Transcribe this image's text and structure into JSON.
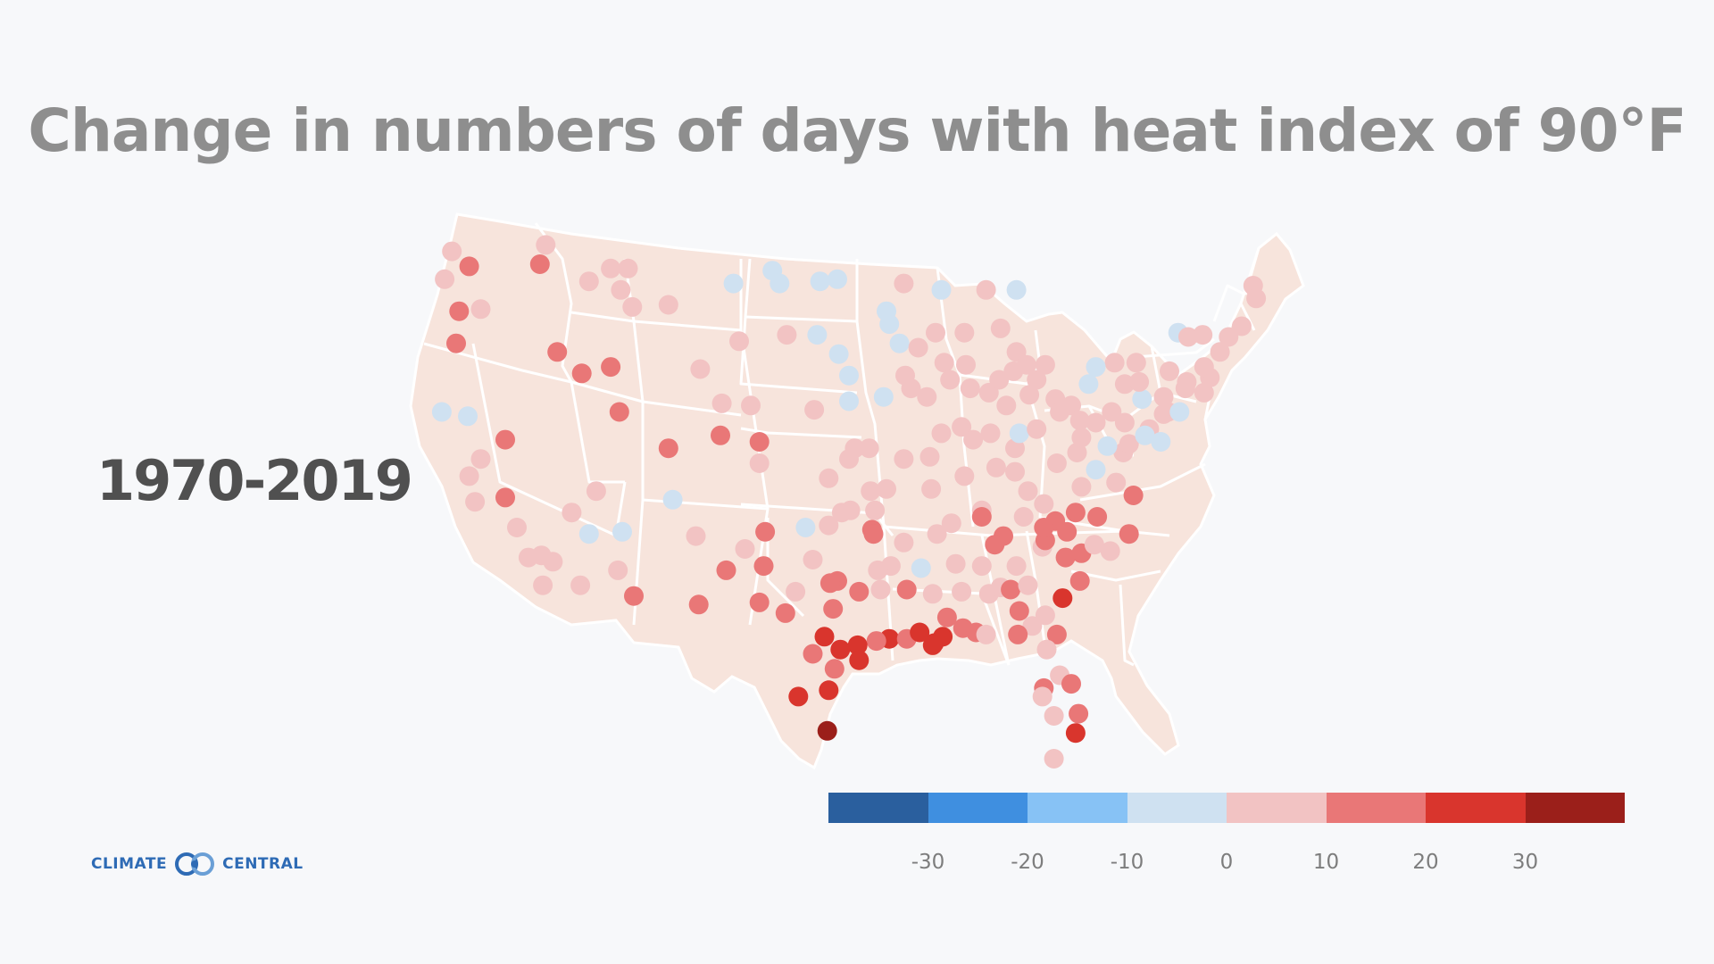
{
  "title": "Change in numbers of days with heat index of 90°F",
  "period": "1970-2019",
  "logo": {
    "left_text": "CLIMATE",
    "right_text": "CENTRAL",
    "icon": "climate-central-rings-icon"
  },
  "colors": {
    "background": "#f7f8fa",
    "land": "#f7e4dc",
    "borders": "#ffffff",
    "title": "#8e8e8e",
    "period": "#505050"
  },
  "legend": {
    "bins": [
      {
        "min": -40,
        "max": -30,
        "color": "#2a5f9e"
      },
      {
        "min": -30,
        "max": -20,
        "color": "#3f8fe0"
      },
      {
        "min": -20,
        "max": -10,
        "color": "#87c2f5"
      },
      {
        "min": -10,
        "max": 0,
        "color": "#cfe1f1"
      },
      {
        "min": 0,
        "max": 10,
        "color": "#f2c3c3"
      },
      {
        "min": 10,
        "max": 20,
        "color": "#e97777"
      },
      {
        "min": 20,
        "max": 30,
        "color": "#d9352d"
      },
      {
        "min": 30,
        "max": 40,
        "color": "#9b1f1a"
      }
    ],
    "ticks": [
      "-30",
      "-20",
      "-10",
      "0",
      "10",
      "20",
      "30"
    ]
  },
  "stations_note": "Station values are approximate change in days (1970-2019), placed by lon/lat",
  "stations": [
    {
      "lon": -123.5,
      "lat": 48.3,
      "v": 5
    },
    {
      "lon": -122.3,
      "lat": 47.6,
      "v": 15
    },
    {
      "lon": -124,
      "lat": 47.0,
      "v": 5
    },
    {
      "lon": -123.0,
      "lat": 45.5,
      "v": 15
    },
    {
      "lon": -121.5,
      "lat": 45.6,
      "v": 5
    },
    {
      "lon": -123.2,
      "lat": 44.0,
      "v": 15
    },
    {
      "lon": -117.4,
      "lat": 47.7,
      "v": 15
    },
    {
      "lon": -117.0,
      "lat": 48.6,
      "v": 5
    },
    {
      "lon": -116.2,
      "lat": 43.6,
      "v": 15
    },
    {
      "lon": -114.0,
      "lat": 46.9,
      "v": 5
    },
    {
      "lon": -112.5,
      "lat": 47.5,
      "v": 5
    },
    {
      "lon": -111.3,
      "lat": 47.5,
      "v": 5
    },
    {
      "lon": -111.8,
      "lat": 46.5,
      "v": 5
    },
    {
      "lon": -111.0,
      "lat": 45.7,
      "v": 5
    },
    {
      "lon": -108.5,
      "lat": 45.8,
      "v": 5
    },
    {
      "lon": -104.0,
      "lat": 46.8,
      "v": -5
    },
    {
      "lon": -101.3,
      "lat": 47.4,
      "v": -5
    },
    {
      "lon": -100.8,
      "lat": 46.8,
      "v": -5
    },
    {
      "lon": -98.0,
      "lat": 46.9,
      "v": -5
    },
    {
      "lon": -96.8,
      "lat": 47.0,
      "v": -5
    },
    {
      "lon": -114.5,
      "lat": 42.6,
      "v": 15
    },
    {
      "lon": -112.5,
      "lat": 42.9,
      "v": 15
    },
    {
      "lon": -111.9,
      "lat": 40.8,
      "v": 15
    },
    {
      "lon": -106.3,
      "lat": 42.8,
      "v": 5
    },
    {
      "lon": -104.8,
      "lat": 41.2,
      "v": 5
    },
    {
      "lon": -103.6,
      "lat": 44.1,
      "v": 5
    },
    {
      "lon": -100.3,
      "lat": 44.4,
      "v": 5
    },
    {
      "lon": -98.2,
      "lat": 44.4,
      "v": -5
    },
    {
      "lon": -96.7,
      "lat": 43.5,
      "v": -5
    },
    {
      "lon": -96.0,
      "lat": 42.5,
      "v": -5
    },
    {
      "lon": -102.8,
      "lat": 41.1,
      "v": 5
    },
    {
      "lon": -98.4,
      "lat": 40.9,
      "v": 5
    },
    {
      "lon": -96.0,
      "lat": 41.3,
      "v": -5
    },
    {
      "lon": -104.9,
      "lat": 39.7,
      "v": 15
    },
    {
      "lon": -102.2,
      "lat": 39.4,
      "v": 15
    },
    {
      "lon": -108.5,
      "lat": 39.1,
      "v": 15
    },
    {
      "lon": -102.2,
      "lat": 38.4,
      "v": 5
    },
    {
      "lon": -97.4,
      "lat": 37.7,
      "v": 5
    },
    {
      "lon": -95.6,
      "lat": 39.1,
      "v": 5
    },
    {
      "lon": -96.0,
      "lat": 38.6,
      "v": 5
    },
    {
      "lon": -99.0,
      "lat": 35.4,
      "v": -5
    },
    {
      "lon": -97.4,
      "lat": 35.5,
      "v": 5
    },
    {
      "lon": -96.5,
      "lat": 36.1,
      "v": 5
    },
    {
      "lon": -95.9,
      "lat": 36.2,
      "v": 5
    },
    {
      "lon": -94.6,
      "lat": 39.1,
      "v": 5
    },
    {
      "lon": -94.5,
      "lat": 37.1,
      "v": 5
    },
    {
      "lon": -92.2,
      "lat": 38.6,
      "v": 5
    },
    {
      "lon": -93.4,
      "lat": 37.2,
      "v": 5
    },
    {
      "lon": -90.4,
      "lat": 38.7,
      "v": 5
    },
    {
      "lon": -91.7,
      "lat": 41.9,
      "v": 5
    },
    {
      "lon": -93.6,
      "lat": 41.5,
      "v": -5
    },
    {
      "lon": -90.6,
      "lat": 41.5,
      "v": 5
    },
    {
      "lon": -92.1,
      "lat": 42.5,
      "v": 5
    },
    {
      "lon": -93.2,
      "lat": 44.9,
      "v": -5
    },
    {
      "lon": -92.5,
      "lat": 44.0,
      "v": -5
    },
    {
      "lon": -92.2,
      "lat": 46.8,
      "v": 5
    },
    {
      "lon": -93.4,
      "lat": 45.5,
      "v": -5
    },
    {
      "lon": -91.2,
      "lat": 43.8,
      "v": 5
    },
    {
      "lon": -90.0,
      "lat": 44.5,
      "v": 5
    },
    {
      "lon": -89.4,
      "lat": 43.1,
      "v": 5
    },
    {
      "lon": -87.9,
      "lat": 43.0,
      "v": 5
    },
    {
      "lon": -88.0,
      "lat": 44.5,
      "v": 5
    },
    {
      "lon": -89.6,
      "lat": 46.5,
      "v": -5
    },
    {
      "lon": -87.6,
      "lat": 41.9,
      "v": 5
    },
    {
      "lon": -89.6,
      "lat": 39.8,
      "v": 5
    },
    {
      "lon": -88.2,
      "lat": 40.1,
      "v": 5
    },
    {
      "lon": -89.0,
      "lat": 42.3,
      "v": 5
    },
    {
      "lon": -87.4,
      "lat": 39.5,
      "v": 5
    },
    {
      "lon": -86.2,
      "lat": 39.8,
      "v": 5
    },
    {
      "lon": -85.1,
      "lat": 41.1,
      "v": 5
    },
    {
      "lon": -86.3,
      "lat": 41.7,
      "v": 5
    },
    {
      "lon": -85.6,
      "lat": 42.3,
      "v": 5
    },
    {
      "lon": -84.6,
      "lat": 42.7,
      "v": 5
    },
    {
      "lon": -83.0,
      "lat": 42.3,
      "v": 5
    },
    {
      "lon": -84.4,
      "lat": 43.6,
      "v": 5
    },
    {
      "lon": -85.5,
      "lat": 44.7,
      "v": 5
    },
    {
      "lon": -84.4,
      "lat": 46.5,
      "v": -5
    },
    {
      "lon": -86.5,
      "lat": 46.5,
      "v": 5
    },
    {
      "lon": -83.7,
      "lat": 43.0,
      "v": 5
    },
    {
      "lon": -82.4,
      "lat": 43.0,
      "v": 5
    },
    {
      "lon": -84.5,
      "lat": 39.1,
      "v": 5
    },
    {
      "lon": -84.2,
      "lat": 39.8,
      "v": -5
    },
    {
      "lon": -83.0,
      "lat": 40.0,
      "v": 5
    },
    {
      "lon": -81.7,
      "lat": 41.4,
      "v": 5
    },
    {
      "lon": -83.5,
      "lat": 41.6,
      "v": 5
    },
    {
      "lon": -81.4,
      "lat": 40.8,
      "v": 5
    },
    {
      "lon": -80.6,
      "lat": 41.1,
      "v": 5
    },
    {
      "lon": -80.0,
      "lat": 40.4,
      "v": 5
    },
    {
      "lon": -79.9,
      "lat": 39.6,
      "v": 5
    },
    {
      "lon": -81.6,
      "lat": 38.4,
      "v": 5
    },
    {
      "lon": -80.2,
      "lat": 38.9,
      "v": 5
    },
    {
      "lon": -78.9,
      "lat": 40.3,
      "v": 5
    },
    {
      "lon": -77.8,
      "lat": 40.8,
      "v": 5
    },
    {
      "lon": -76.9,
      "lat": 40.3,
      "v": 5
    },
    {
      "lon": -75.2,
      "lat": 40.0,
      "v": 5
    },
    {
      "lon": -75.7,
      "lat": 41.4,
      "v": -5
    },
    {
      "lon": -77.0,
      "lat": 38.9,
      "v": 5
    },
    {
      "lon": -76.6,
      "lat": 39.3,
      "v": 5
    },
    {
      "lon": -78.1,
      "lat": 39.2,
      "v": -5
    },
    {
      "lon": -77.5,
      "lat": 37.5,
      "v": 5
    },
    {
      "lon": -76.3,
      "lat": 36.9,
      "v": 15
    },
    {
      "lon": -79.9,
      "lat": 37.3,
      "v": 5
    },
    {
      "lon": -78.9,
      "lat": 38.1,
      "v": -5
    },
    {
      "lon": -75.5,
      "lat": 39.7,
      "v": -5
    },
    {
      "lon": -74.4,
      "lat": 39.4,
      "v": -5
    },
    {
      "lon": -74.2,
      "lat": 40.7,
      "v": 5
    },
    {
      "lon": -73.9,
      "lat": 40.8,
      "v": 5
    },
    {
      "lon": -73.1,
      "lat": 40.8,
      "v": -5
    },
    {
      "lon": -73.8,
      "lat": 42.7,
      "v": 5
    },
    {
      "lon": -76.1,
      "lat": 43.1,
      "v": 5
    },
    {
      "lon": -77.6,
      "lat": 43.1,
      "v": 5
    },
    {
      "lon": -78.9,
      "lat": 42.9,
      "v": -5
    },
    {
      "lon": -79.4,
      "lat": 42.1,
      "v": -5
    },
    {
      "lon": -76.9,
      "lat": 42.1,
      "v": 5
    },
    {
      "lon": -75.9,
      "lat": 42.2,
      "v": 5
    },
    {
      "lon": -74.2,
      "lat": 41.5,
      "v": 5
    },
    {
      "lon": -73.2,
      "lat": 44.5,
      "v": -5
    },
    {
      "lon": -72.7,
      "lat": 41.9,
      "v": 5
    },
    {
      "lon": -71.4,
      "lat": 41.7,
      "v": 5
    },
    {
      "lon": -71.0,
      "lat": 42.4,
      "v": 5
    },
    {
      "lon": -72.6,
      "lat": 42.2,
      "v": 5
    },
    {
      "lon": -71.4,
      "lat": 42.9,
      "v": 5
    },
    {
      "lon": -70.3,
      "lat": 43.6,
      "v": 5
    },
    {
      "lon": -71.5,
      "lat": 44.4,
      "v": 5
    },
    {
      "lon": -69.7,
      "lat": 44.3,
      "v": 5
    },
    {
      "lon": -68.8,
      "lat": 44.8,
      "v": 5
    },
    {
      "lon": -68.0,
      "lat": 46.7,
      "v": 5
    },
    {
      "lon": -67.8,
      "lat": 46.1,
      "v": 5
    },
    {
      "lon": -72.5,
      "lat": 44.3,
      "v": 5
    },
    {
      "lon": -88.0,
      "lat": 37.8,
      "v": 5
    },
    {
      "lon": -86.8,
      "lat": 36.2,
      "v": 5
    },
    {
      "lon": -85.8,
      "lat": 38.2,
      "v": 5
    },
    {
      "lon": -84.5,
      "lat": 38.0,
      "v": 5
    },
    {
      "lon": -83.6,
      "lat": 37.1,
      "v": 5
    },
    {
      "lon": -82.5,
      "lat": 36.5,
      "v": 5
    },
    {
      "lon": -83.9,
      "lat": 35.9,
      "v": 5
    },
    {
      "lon": -85.3,
      "lat": 35.0,
      "v": 15
    },
    {
      "lon": -86.8,
      "lat": 35.9,
      "v": 15
    },
    {
      "lon": -89.9,
      "lat": 35.1,
      "v": 5
    },
    {
      "lon": -88.9,
      "lat": 35.6,
      "v": 5
    },
    {
      "lon": -90.3,
      "lat": 37.2,
      "v": 5
    },
    {
      "lon": -92.2,
      "lat": 34.7,
      "v": 5
    },
    {
      "lon": -94.2,
      "lat": 36.2,
      "v": 5
    },
    {
      "lon": -93.1,
      "lat": 33.6,
      "v": 5
    },
    {
      "lon": -94.4,
      "lat": 35.3,
      "v": 15
    },
    {
      "lon": -94.3,
      "lat": 35.1,
      "v": 15
    },
    {
      "lon": -90.2,
      "lat": 32.3,
      "v": 5
    },
    {
      "lon": -91.0,
      "lat": 33.5,
      "v": -5
    },
    {
      "lon": -88.6,
      "lat": 33.7,
      "v": 5
    },
    {
      "lon": -89.2,
      "lat": 31.2,
      "v": 15
    },
    {
      "lon": -88.2,
      "lat": 32.4,
      "v": 5
    },
    {
      "lon": -86.8,
      "lat": 33.6,
      "v": 5
    },
    {
      "lon": -86.3,
      "lat": 32.3,
      "v": 5
    },
    {
      "lon": -85.9,
      "lat": 34.6,
      "v": 15
    },
    {
      "lon": -85.5,
      "lat": 32.6,
      "v": 5
    },
    {
      "lon": -88.1,
      "lat": 30.7,
      "v": 15
    },
    {
      "lon": -87.2,
      "lat": 30.5,
      "v": 15
    },
    {
      "lon": -86.5,
      "lat": 30.4,
      "v": 5
    },
    {
      "lon": -84.4,
      "lat": 33.6,
      "v": 5
    },
    {
      "lon": -84.8,
      "lat": 32.5,
      "v": 15
    },
    {
      "lon": -83.6,
      "lat": 32.7,
      "v": 5
    },
    {
      "lon": -81.2,
      "lat": 32.1,
      "v": 20
    },
    {
      "lon": -84.2,
      "lat": 31.5,
      "v": 15
    },
    {
      "lon": -82.4,
      "lat": 31.3,
      "v": 5
    },
    {
      "lon": -83.3,
      "lat": 30.8,
      "v": 5
    },
    {
      "lon": -84.3,
      "lat": 30.4,
      "v": 15
    },
    {
      "lon": -82.6,
      "lat": 34.5,
      "v": 5
    },
    {
      "lon": -81.0,
      "lat": 34.0,
      "v": 15
    },
    {
      "lon": -80.0,
      "lat": 32.9,
      "v": 15
    },
    {
      "lon": -82.4,
      "lat": 34.8,
      "v": 15
    },
    {
      "lon": -80.9,
      "lat": 35.2,
      "v": 15
    },
    {
      "lon": -79.9,
      "lat": 34.2,
      "v": 15
    },
    {
      "lon": -80.3,
      "lat": 36.1,
      "v": 15
    },
    {
      "lon": -81.7,
      "lat": 35.7,
      "v": 15
    },
    {
      "lon": -82.5,
      "lat": 35.4,
      "v": 15
    },
    {
      "lon": -78.8,
      "lat": 35.9,
      "v": 15
    },
    {
      "lon": -79.0,
      "lat": 34.6,
      "v": 5
    },
    {
      "lon": -77.9,
      "lat": 34.3,
      "v": 5
    },
    {
      "lon": -76.6,
      "lat": 35.1,
      "v": 15
    },
    {
      "lon": -81.6,
      "lat": 30.4,
      "v": 15
    },
    {
      "lon": -82.3,
      "lat": 29.7,
      "v": 5
    },
    {
      "lon": -81.4,
      "lat": 28.5,
      "v": 5
    },
    {
      "lon": -82.5,
      "lat": 27.9,
      "v": 15
    },
    {
      "lon": -80.6,
      "lat": 28.1,
      "v": 15
    },
    {
      "lon": -81.8,
      "lat": 26.6,
      "v": 5
    },
    {
      "lon": -80.1,
      "lat": 26.7,
      "v": 15
    },
    {
      "lon": -80.3,
      "lat": 25.8,
      "v": 20
    },
    {
      "lon": -81.8,
      "lat": 24.6,
      "v": 5
    },
    {
      "lon": -82.6,
      "lat": 27.5,
      "v": 5
    },
    {
      "lon": -93.2,
      "lat": 30.2,
      "v": 20
    },
    {
      "lon": -92.0,
      "lat": 30.2,
      "v": 15
    },
    {
      "lon": -91.1,
      "lat": 30.5,
      "v": 20
    },
    {
      "lon": -90.1,
      "lat": 30.0,
      "v": 20
    },
    {
      "lon": -89.5,
      "lat": 30.3,
      "v": 20
    },
    {
      "lon": -90.2,
      "lat": 29.9,
      "v": 20
    },
    {
      "lon": -92.0,
      "lat": 32.5,
      "v": 15
    },
    {
      "lon": -93.8,
      "lat": 32.5,
      "v": 5
    },
    {
      "lon": -94.1,
      "lat": 30.1,
      "v": 15
    },
    {
      "lon": -95.4,
      "lat": 29.9,
      "v": 20
    },
    {
      "lon": -95.3,
      "lat": 29.2,
      "v": 20
    },
    {
      "lon": -96.6,
      "lat": 29.7,
      "v": 20
    },
    {
      "lon": -97.0,
      "lat": 28.8,
      "v": 15
    },
    {
      "lon": -97.4,
      "lat": 27.8,
      "v": 20
    },
    {
      "lon": -97.5,
      "lat": 25.9,
      "v": 30
    },
    {
      "lon": -98.5,
      "lat": 29.5,
      "v": 15
    },
    {
      "lon": -99.5,
      "lat": 27.5,
      "v": 20
    },
    {
      "lon": -97.7,
      "lat": 30.3,
      "v": 20
    },
    {
      "lon": -97.1,
      "lat": 31.6,
      "v": 15
    },
    {
      "lon": -96.8,
      "lat": 32.9,
      "v": 15
    },
    {
      "lon": -97.3,
      "lat": 32.8,
      "v": 15
    },
    {
      "lon": -95.3,
      "lat": 32.4,
      "v": 15
    },
    {
      "lon": -94.0,
      "lat": 33.4,
      "v": 5
    },
    {
      "lon": -100.4,
      "lat": 31.4,
      "v": 15
    },
    {
      "lon": -101.9,
      "lat": 33.6,
      "v": 15
    },
    {
      "lon": -101.8,
      "lat": 35.2,
      "v": 15
    },
    {
      "lon": -102.2,
      "lat": 31.9,
      "v": 15
    },
    {
      "lon": -99.7,
      "lat": 32.4,
      "v": 5
    },
    {
      "lon": -98.5,
      "lat": 33.9,
      "v": 5
    },
    {
      "lon": -106.4,
      "lat": 31.8,
      "v": 15
    },
    {
      "lon": -104.5,
      "lat": 33.4,
      "v": 15
    },
    {
      "lon": -103.2,
      "lat": 34.4,
      "v": 5
    },
    {
      "lon": -106.6,
      "lat": 35.0,
      "v": 5
    },
    {
      "lon": -108.2,
      "lat": 36.7,
      "v": -5
    },
    {
      "lon": -111.7,
      "lat": 35.2,
      "v": -5
    },
    {
      "lon": -112.0,
      "lat": 33.4,
      "v": 5
    },
    {
      "lon": -110.9,
      "lat": 32.2,
      "v": 15
    },
    {
      "lon": -114.6,
      "lat": 32.7,
      "v": 5
    },
    {
      "lon": -114.0,
      "lat": 35.1,
      "v": -5
    },
    {
      "lon": -115.2,
      "lat": 36.1,
      "v": 5
    },
    {
      "lon": -113.5,
      "lat": 37.1,
      "v": 5
    },
    {
      "lon": -117.2,
      "lat": 32.7,
      "v": 5
    },
    {
      "lon": -118.2,
      "lat": 34.0,
      "v": 5
    },
    {
      "lon": -117.3,
      "lat": 34.1,
      "v": 5
    },
    {
      "lon": -119.0,
      "lat": 35.4,
      "v": 5
    },
    {
      "lon": -119.8,
      "lat": 36.8,
      "v": 15
    },
    {
      "lon": -121.5,
      "lat": 38.6,
      "v": 5
    },
    {
      "lon": -122.3,
      "lat": 37.8,
      "v": 5
    },
    {
      "lon": -121.9,
      "lat": 36.6,
      "v": 5
    },
    {
      "lon": -119.8,
      "lat": 39.5,
      "v": 15
    },
    {
      "lon": -124.2,
      "lat": 40.8,
      "v": -5
    },
    {
      "lon": -122.4,
      "lat": 40.6,
      "v": -5
    },
    {
      "lon": -116.5,
      "lat": 33.8,
      "v": 5
    }
  ]
}
